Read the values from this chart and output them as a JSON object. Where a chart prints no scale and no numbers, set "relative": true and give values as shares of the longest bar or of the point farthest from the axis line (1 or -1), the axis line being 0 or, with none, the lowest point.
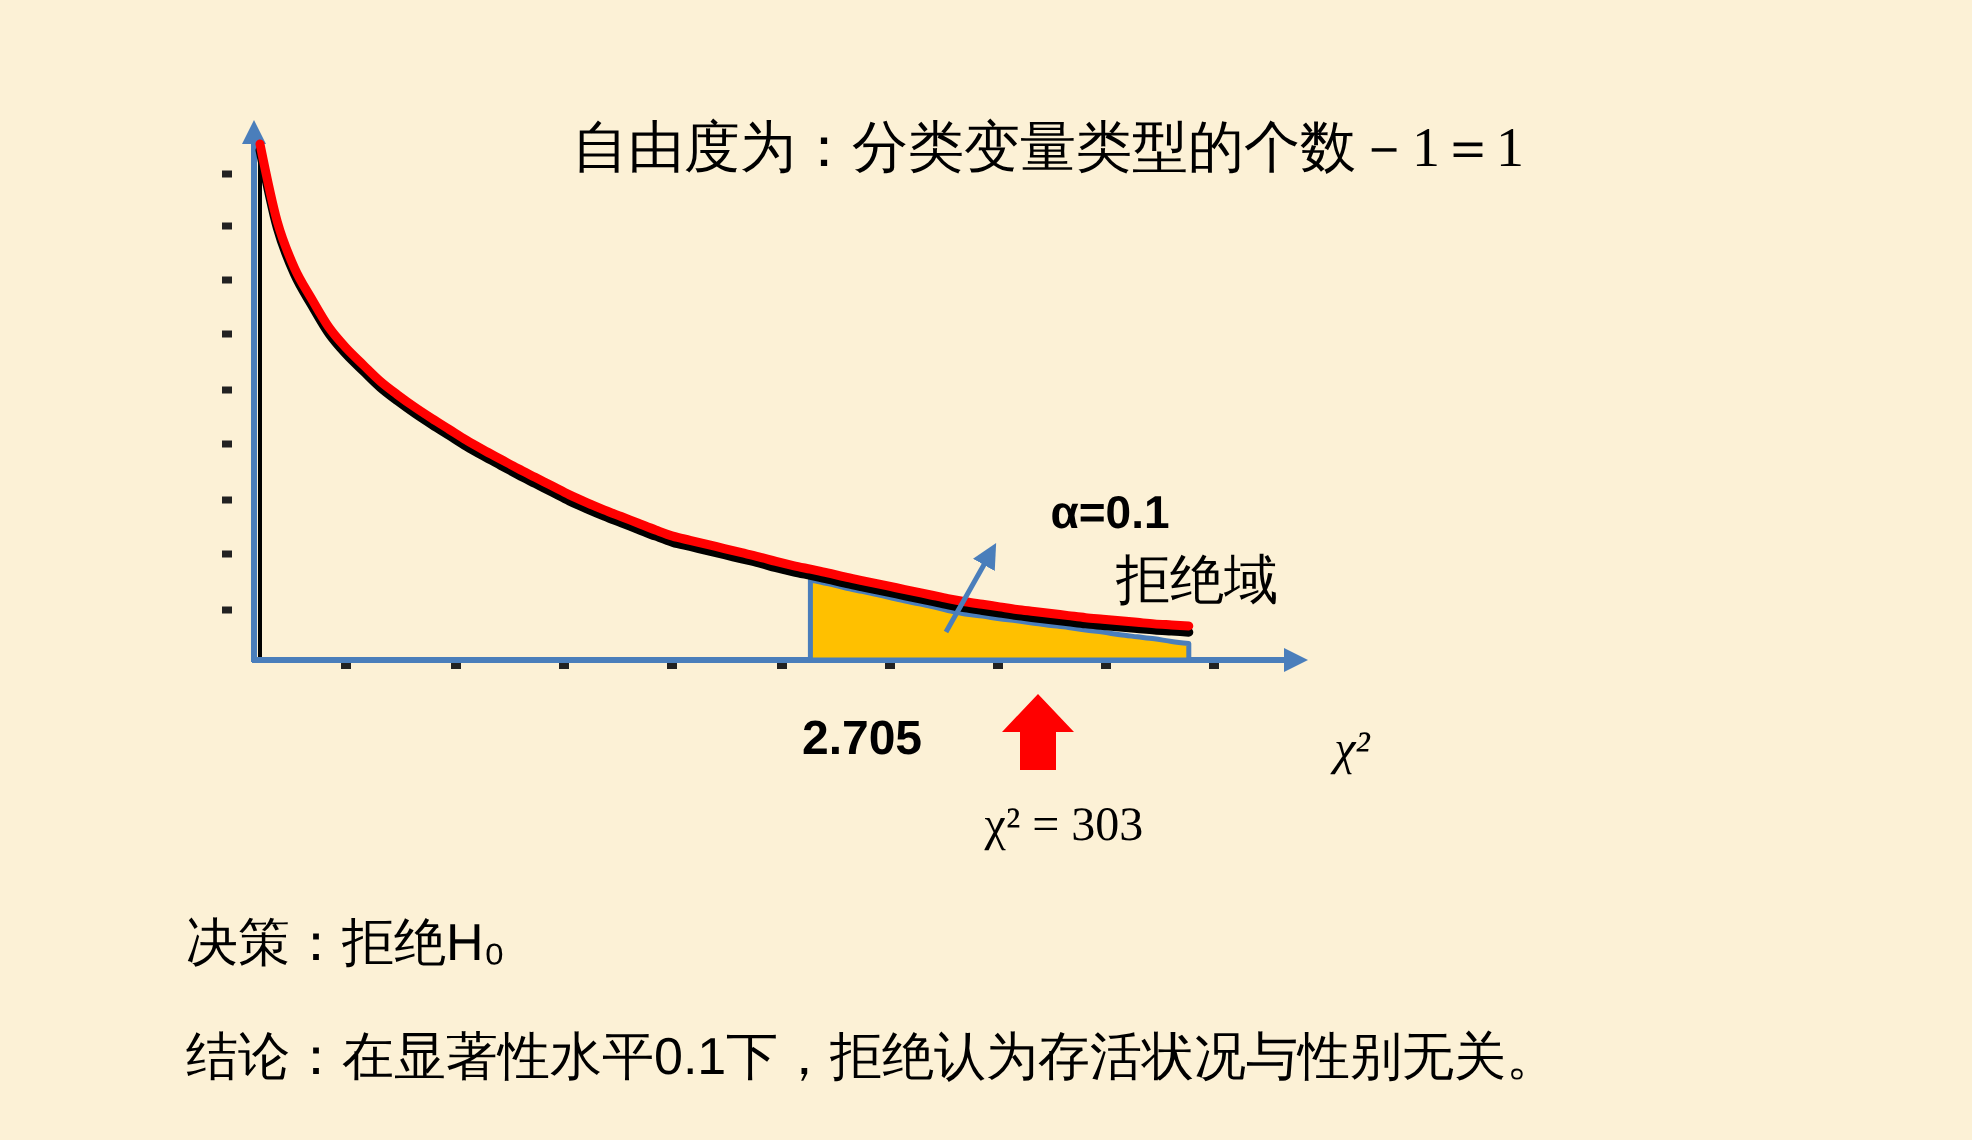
{
  "chart_data": {
    "type": "line",
    "title": "自由度为：分类变量类型的个数－1＝1",
    "xlabel": "χ²",
    "relative": true,
    "categories": [
      null,
      null,
      null,
      null,
      null,
      null,
      null,
      null,
      null,
      null,
      null,
      null,
      null,
      null,
      null,
      null,
      null,
      null,
      null,
      null,
      null,
      null,
      null,
      null,
      null,
      null,
      null,
      null,
      null,
      null,
      null,
      null,
      null,
      null,
      null,
      null,
      null,
      null,
      null,
      null,
      null,
      null,
      null,
      null,
      null,
      null,
      null,
      null,
      null,
      null,
      null,
      null,
      null,
      null,
      null
    ],
    "series": [
      {
        "type": "area",
        "color": "#ffc000",
        "values": [
          null,
          null,
          null,
          null,
          null,
          null,
          null,
          null,
          null,
          null,
          null,
          null,
          null,
          null,
          null,
          null,
          null,
          null,
          null,
          null,
          null,
          null,
          null,
          null,
          null,
          null,
          null,
          null,
          null,
          null,
          null,
          null,
          0.155,
          0.148,
          0.14,
          0.133,
          0.126,
          0.118,
          0.111,
          0.104,
          0.096,
          0.089,
          0.085,
          0.08,
          0.076,
          0.071,
          0.067,
          0.063,
          0.058,
          0.054,
          0.049,
          0.045,
          0.041,
          0.036,
          0.032
        ]
      },
      {
        "color": "#000000",
        "values": [
          0.988,
          0.838,
          0.748,
          0.688,
          0.633,
          0.593,
          0.56,
          0.528,
          0.502,
          0.478,
          0.456,
          0.435,
          0.414,
          0.395,
          0.377,
          0.359,
          0.342,
          0.325,
          0.308,
          0.293,
          0.279,
          0.266,
          0.253,
          0.24,
          0.228,
          0.22,
          0.212,
          0.204,
          0.196,
          0.188,
          0.179,
          0.171,
          0.164,
          0.157,
          0.149,
          0.142,
          0.135,
          0.128,
          0.121,
          0.114,
          0.107,
          0.101,
          0.096,
          0.091,
          0.086,
          0.082,
          0.078,
          0.074,
          0.07,
          0.067,
          0.064,
          0.061,
          0.058,
          0.056,
          0.054
        ]
      },
      {
        "color": "#ff0000",
        "values": [
          1.0,
          0.85,
          0.76,
          0.7,
          0.645,
          0.605,
          0.572,
          0.54,
          0.514,
          0.49,
          0.468,
          0.447,
          0.426,
          0.407,
          0.389,
          0.371,
          0.354,
          0.337,
          0.32,
          0.305,
          0.291,
          0.278,
          0.265,
          0.252,
          0.24,
          0.232,
          0.224,
          0.216,
          0.208,
          0.2,
          0.191,
          0.183,
          0.176,
          0.169,
          0.161,
          0.154,
          0.147,
          0.14,
          0.133,
          0.126,
          0.119,
          0.113,
          0.108,
          0.103,
          0.098,
          0.094,
          0.09,
          0.086,
          0.082,
          0.079,
          0.076,
          0.073,
          0.07,
          0.068,
          0.066
        ]
      }
    ],
    "annotations": [
      "α=0.1",
      "拒绝域",
      "2.705",
      "χ² = 303",
      "决策：拒绝H₀",
      "结论：在显著性水平0.1下，拒绝认为存活状况与性别无关。"
    ]
  }
}
